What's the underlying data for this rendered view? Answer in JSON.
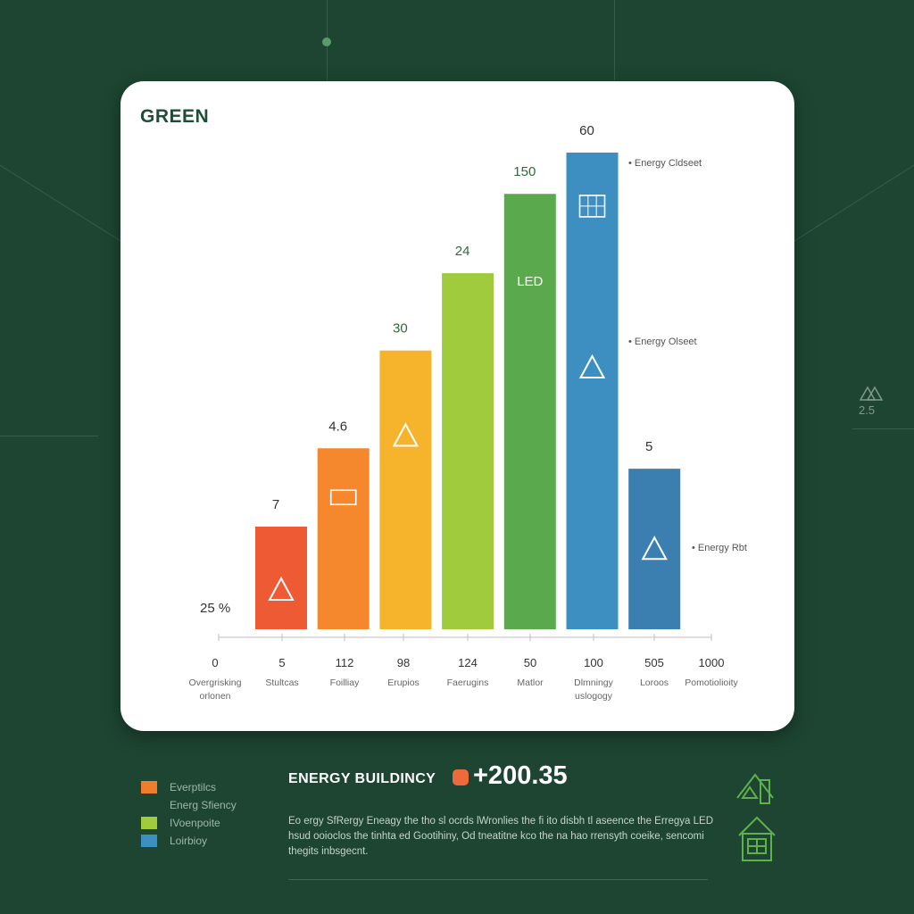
{
  "brand": "GREEN",
  "chart_data": {
    "type": "bar",
    "categories": [
      "Overgrisking orlonen",
      "Stultcas",
      "Foilliay",
      "Erupios",
      "Faerugins",
      "Matlor",
      "Dlmningy uslogogy",
      "Loroos",
      "Pomotiolioity"
    ],
    "x_ticks": [
      "0",
      "5",
      "112",
      "98",
      "124",
      "50",
      "100",
      "505",
      "1000"
    ],
    "bars": [
      {
        "category": "Stultcas",
        "value": 7,
        "label": "7",
        "color": "#ee5a34",
        "icon": "triangle-icon"
      },
      {
        "category": "Foilliay",
        "value": 4.6,
        "label": "4.6",
        "color": "#f5882c",
        "icon": "solar-gift-icon"
      },
      {
        "category": "Erupios",
        "value": 30,
        "label": "30",
        "color": "#f6b32c",
        "icon": "triangle-icon"
      },
      {
        "category": "Faerugins",
        "value": 24,
        "label": "24",
        "color": "#9fcb3d",
        "icon": ""
      },
      {
        "category": "Matlor",
        "value": 150,
        "label": "150",
        "color": "#5aa94d",
        "icon": "",
        "inner_text": "LED"
      },
      {
        "category": "Dlmningy uslogogy",
        "value": 60,
        "label": "60",
        "color": "#3e8fc1",
        "icon": "solar-panel-icon",
        "icon2": "triangle-icon"
      },
      {
        "category": "Loroos",
        "value": 5,
        "label": "5",
        "color": "#3b7fb0",
        "icon": "triangle-icon"
      }
    ],
    "bar_tops_relative": [
      0.115,
      0.202,
      0.312,
      0.398,
      0.488,
      0.535,
      0.181
    ],
    "first_label": "25 %",
    "annotations": [
      "Energy Cldseet",
      "Energy Olseet",
      "Energy Rbt"
    ],
    "title": "",
    "xlabel": "",
    "ylabel": ""
  },
  "legend": [
    {
      "label": "Everptilcs",
      "color": "#f07c2c"
    },
    {
      "label": "Energ Sfiency",
      "color": "#f07c2c"
    },
    {
      "label": "IVoenpoite",
      "color": "#9fcb3d"
    },
    {
      "label": "Loirbioy",
      "color": "#3e8fc1"
    }
  ],
  "summary": {
    "title": "ENERGY BUILDINCY",
    "value": "+200.35",
    "accent": "#ef6a3a",
    "description": "Eo ergy SfRergy Eneagy the tho sl ocrds lWronlies the fi ito disbh tl aseence the Erregya LED hsud ooioclos the tinhta ed Gootihiny, Od tneatitne kco the na hao rrensyth coeike, sencomi thegits inbsgecnt."
  },
  "side_readout": "2.5"
}
